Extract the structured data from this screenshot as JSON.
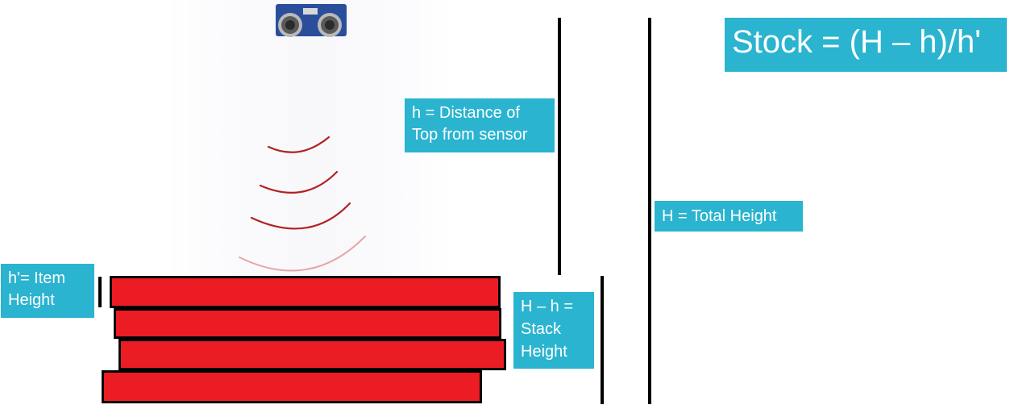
{
  "labels": {
    "formula": "Stock = (H – h)/h'",
    "distance": "h = Distance of\nTop from sensor",
    "total_height": "H = Total Height",
    "item_height": "h'= Item\nHeight",
    "stack_height": "H – h =\nStack\nHeight"
  },
  "icons": {
    "sensor": "ultrasonic-sensor-icon",
    "waves": "sound-wave-arcs"
  },
  "colors": {
    "label_bg": "#2ab4cf",
    "label_text": "#ffffff",
    "item_fill": "#ec1c24",
    "item_border": "#000000",
    "wave": "#b22222",
    "line": "#000000"
  },
  "stack": {
    "item_count": 4
  }
}
